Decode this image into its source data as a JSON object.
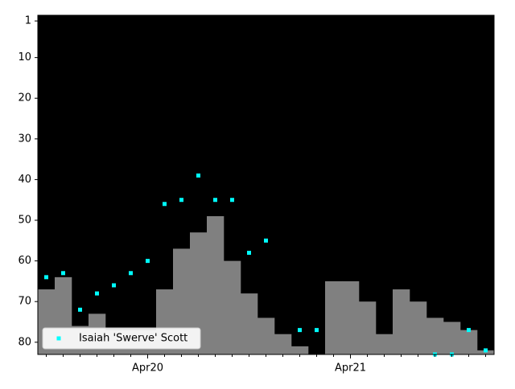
{
  "chart_data": {
    "type": "rank",
    "categories": [
      null,
      null,
      null,
      null,
      null,
      null,
      "Apr20",
      null,
      null,
      null,
      null,
      null,
      null,
      null,
      null,
      null,
      null,
      null,
      "Apr21",
      null,
      null,
      null,
      null,
      null,
      null,
      null,
      null
    ],
    "bars": {
      "color": "#808080",
      "values": [
        67,
        64,
        76,
        73,
        77,
        77,
        77,
        67,
        57,
        53,
        49,
        60,
        68,
        74,
        78,
        81,
        null,
        65,
        65,
        70,
        78,
        67,
        70,
        74,
        75,
        77,
        82
      ]
    },
    "series": [
      {
        "name": "Isaiah 'Swerve' Scott",
        "color": "#00ffff",
        "values": [
          64,
          63,
          72,
          68,
          66,
          63,
          60,
          46,
          45,
          39,
          45,
          45,
          58,
          55,
          null,
          77,
          77,
          null,
          null,
          null,
          null,
          null,
          null,
          83,
          83,
          77,
          82
        ]
      }
    ],
    "ylim": [
      83,
      -0.4
    ],
    "yticks": [
      1,
      10,
      20,
      30,
      40,
      50,
      60,
      70,
      80
    ],
    "legend": "lower left"
  }
}
